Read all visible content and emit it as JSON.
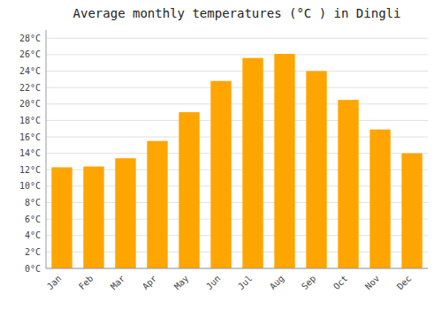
{
  "chart_data": {
    "type": "bar",
    "title": "Average monthly temperatures (°C ) in Dingli",
    "categories": [
      "Jan",
      "Feb",
      "Mar",
      "Apr",
      "May",
      "Jun",
      "Jul",
      "Aug",
      "Sep",
      "Oct",
      "Nov",
      "Dec"
    ],
    "values": [
      12.3,
      12.4,
      13.4,
      15.5,
      19.0,
      22.8,
      25.6,
      26.1,
      24.0,
      20.5,
      16.9,
      14.0
    ],
    "color": "#FFA500",
    "ylim": [
      0,
      29
    ],
    "yticks": [
      {
        "value": 0,
        "label": "0°C"
      },
      {
        "value": 2,
        "label": "2°C"
      },
      {
        "value": 4,
        "label": "4°C"
      },
      {
        "value": 6,
        "label": "6°C"
      },
      {
        "value": 8,
        "label": "8°C"
      },
      {
        "value": 10,
        "label": "10°C"
      },
      {
        "value": 12,
        "label": "12°C"
      },
      {
        "value": 14,
        "label": "14°C"
      },
      {
        "value": 16,
        "label": "16°C"
      },
      {
        "value": 18,
        "label": "18°C"
      },
      {
        "value": 20,
        "label": "20°C"
      },
      {
        "value": 22,
        "label": "22°C"
      },
      {
        "value": 24,
        "label": "24°C"
      },
      {
        "value": 26,
        "label": "26°C"
      },
      {
        "value": 28,
        "label": "28°C"
      }
    ],
    "grid": true
  }
}
